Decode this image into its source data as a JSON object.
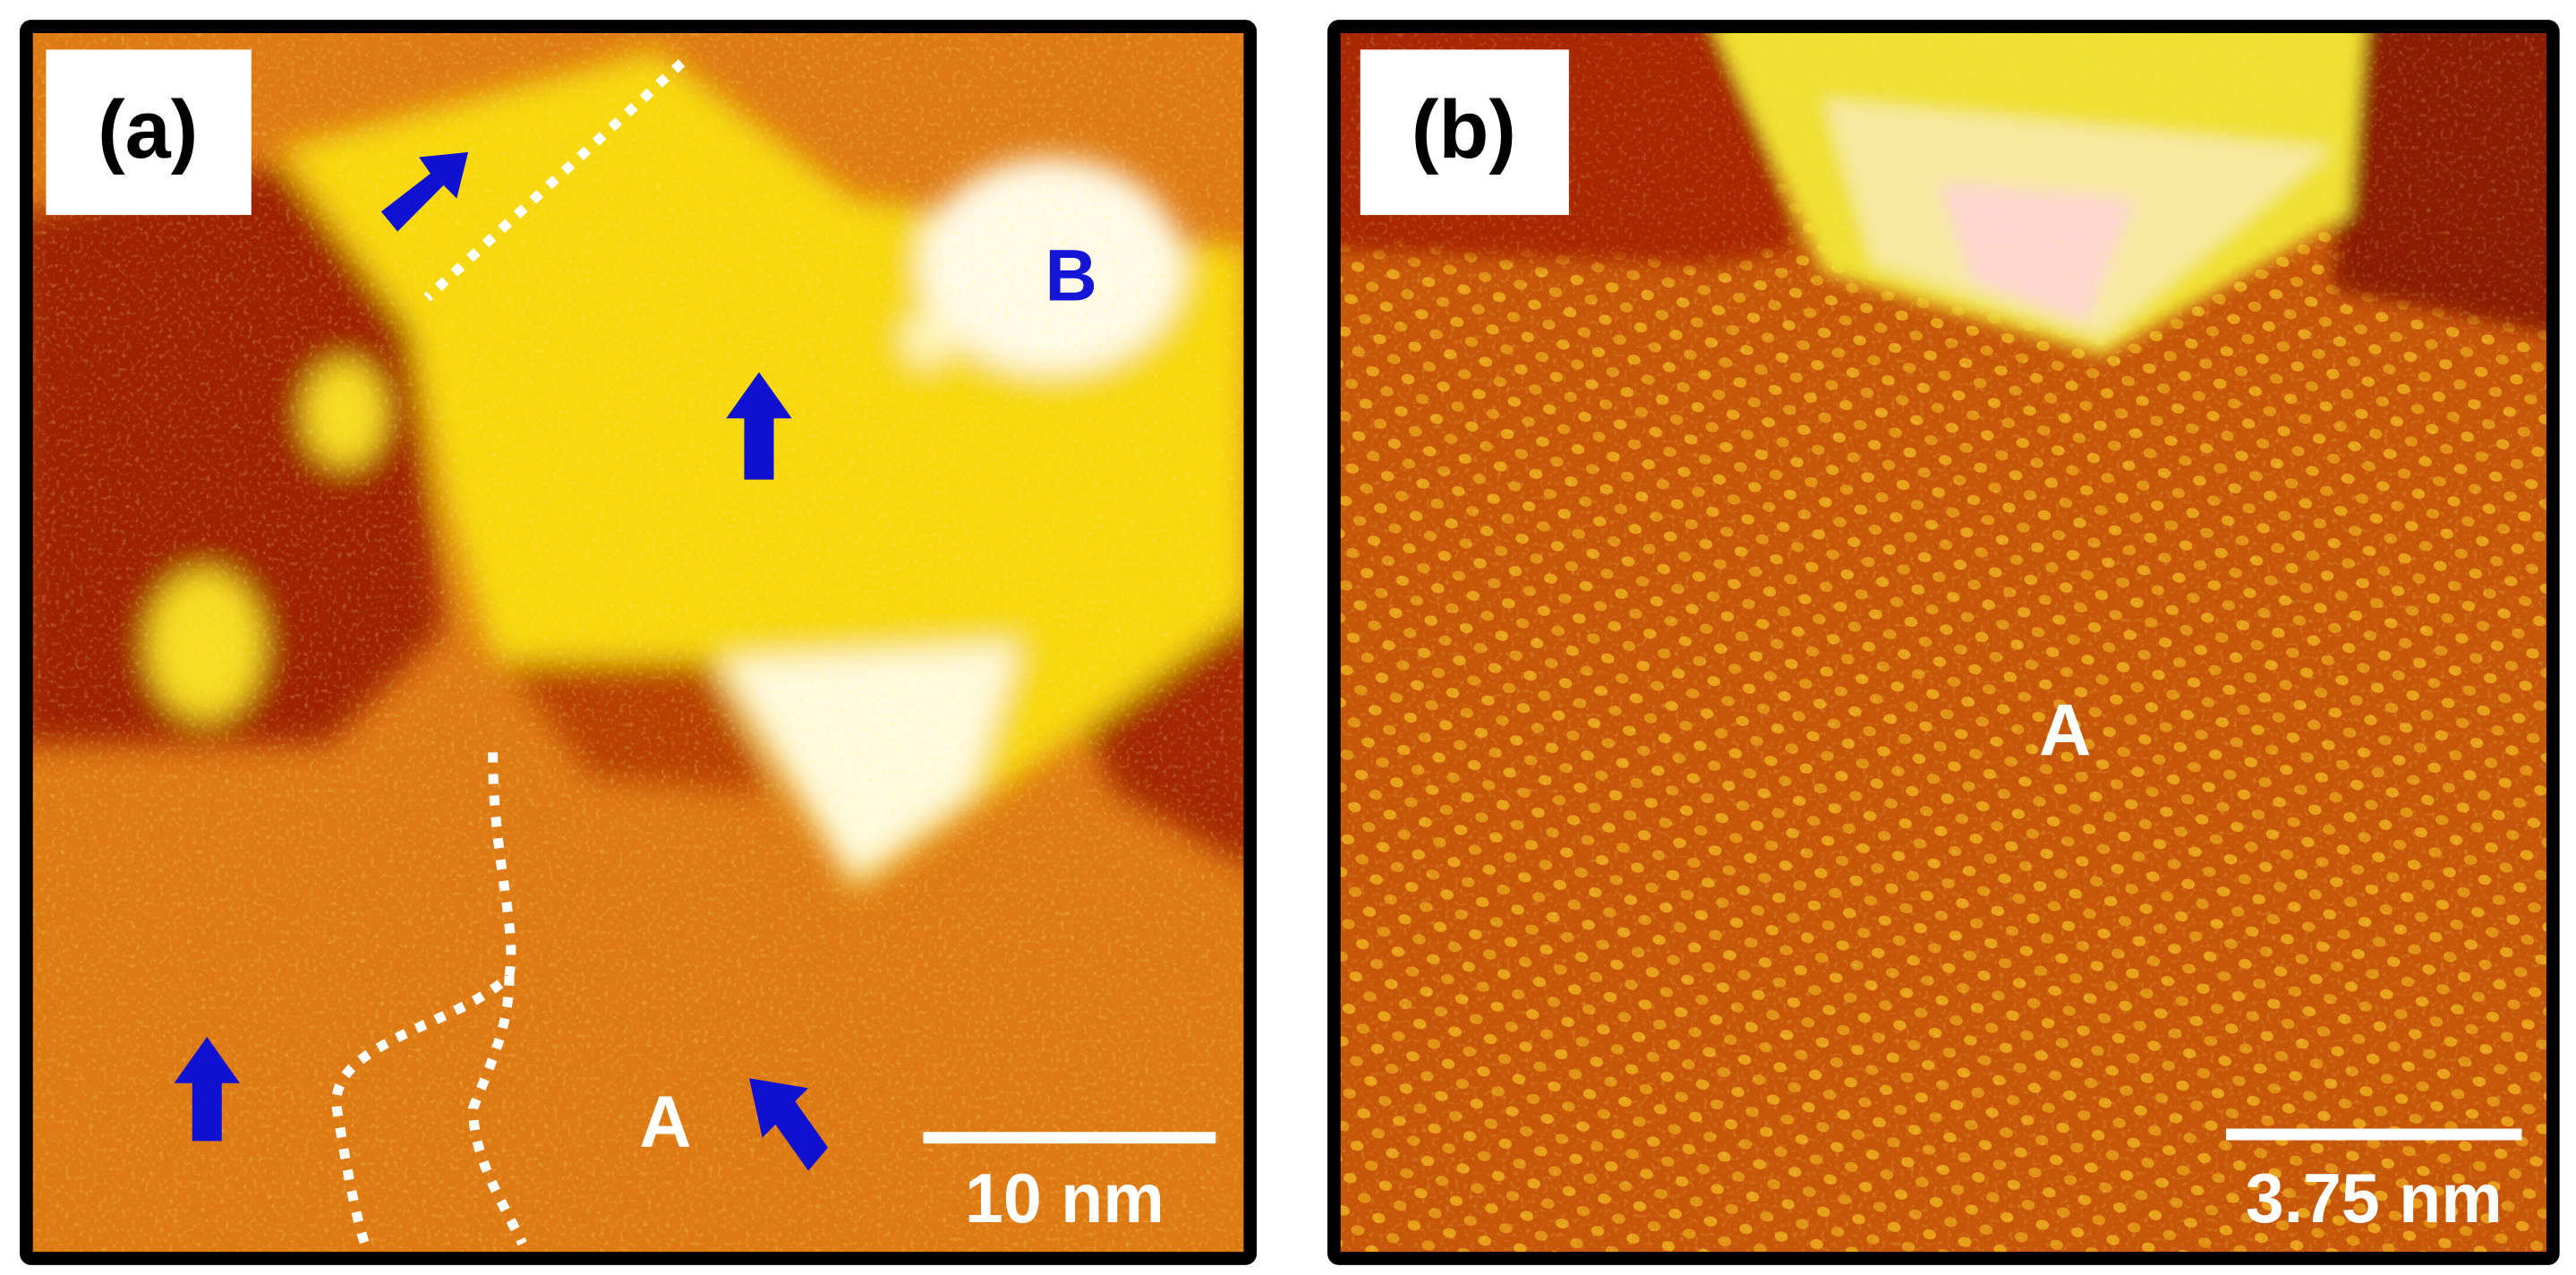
{
  "panels": [
    {
      "label": "(a)",
      "scale_bar": "10 nm",
      "annotations": [
        "B",
        "A"
      ]
    },
    {
      "label": "(b)",
      "scale_bar": "3.75 nm",
      "annotations": [
        "A"
      ]
    }
  ]
}
